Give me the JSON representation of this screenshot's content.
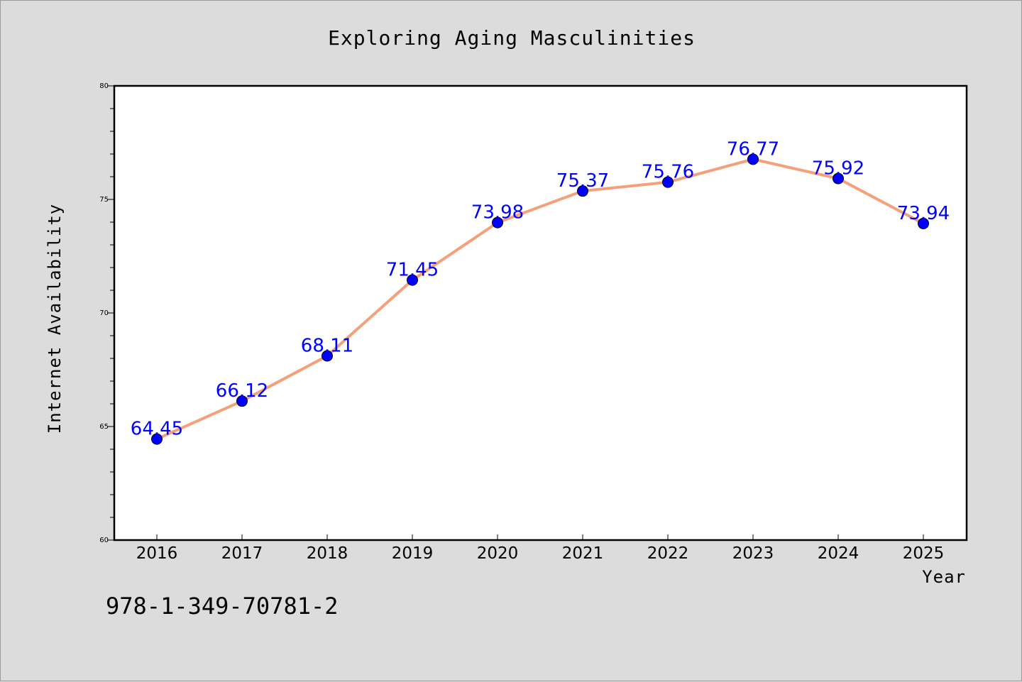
{
  "colors": {
    "background": "#dcdcdc",
    "plot_background": "#ffffff",
    "line": "#f4a07a",
    "marker": "#0000ff",
    "data_label": "#0000ff"
  },
  "footer": {
    "isbn": "978-1-349-70781-2"
  },
  "chart_data": {
    "type": "line",
    "title": "Exploring Aging Masculinities",
    "xlabel": "Year",
    "ylabel": "Internet Availability",
    "x": [
      "2016",
      "2017",
      "2018",
      "2019",
      "2020",
      "2021",
      "2022",
      "2023",
      "2024",
      "2025"
    ],
    "series": [
      {
        "values": [
          64.45,
          66.12,
          68.11,
          71.45,
          73.98,
          75.37,
          75.76,
          76.77,
          75.92,
          73.94
        ],
        "labels": [
          "64.45",
          "66.12",
          "68.11",
          "71.45",
          "73.98",
          "75.37",
          "75.76",
          "76.77",
          "75.92",
          "73.94"
        ]
      }
    ],
    "ylim": [
      60,
      80
    ],
    "yticks": [
      "60",
      "65",
      "70",
      "75",
      "80"
    ],
    "grid": false,
    "legend": "none"
  }
}
